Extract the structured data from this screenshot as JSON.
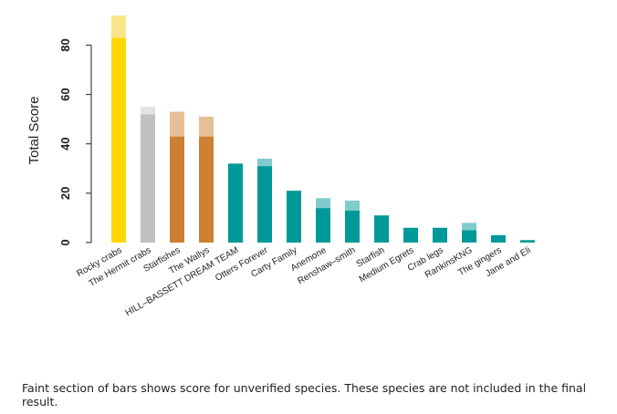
{
  "chart_data": {
    "type": "bar",
    "stacked": true,
    "ylabel": "Total Score",
    "xlabel": "",
    "ylim": [
      0,
      92
    ],
    "yticks": [
      0,
      20,
      40,
      60,
      80
    ],
    "grid": false,
    "categories": [
      "Rocky crabs",
      "The Hermit crabs",
      "Starfishes",
      "The Wallys",
      "HILL–BASSETT DREAM TEAM",
      "Otters Forever",
      "Carty Family",
      "Anemone",
      "Renshaw–smith",
      "Starfish",
      "Medium Egrets",
      "Crab legs",
      "RankinsKNG",
      "The gingers",
      "Jane and Eli"
    ],
    "series": [
      {
        "key": "verified",
        "values": [
          83,
          52,
          43,
          43,
          32,
          31,
          21,
          14,
          13,
          11,
          6,
          6,
          5,
          3,
          1
        ]
      },
      {
        "key": "unverified",
        "values": [
          9,
          3,
          10,
          8,
          0,
          3,
          0,
          4,
          4,
          0,
          0,
          0,
          3,
          0,
          0
        ]
      }
    ],
    "bar_colors": [
      "#FFD700",
      "#C0C0C0",
      "#CD7F32",
      "#CD7F32",
      "#009999",
      "#009999",
      "#009999",
      "#009999",
      "#009999",
      "#009999",
      "#009999",
      "#009999",
      "#009999",
      "#009999",
      "#009999"
    ],
    "faint_colors": [
      "#FDE58A",
      "#E3E3E3",
      "#E6BF99",
      "#E6BF99",
      "#80CCCC",
      "#80CCCC",
      "#80CCCC",
      "#80CCCC",
      "#80CCCC",
      "#80CCCC",
      "#80CCCC",
      "#80CCCC",
      "#80CCCC",
      "#80CCCC",
      "#80CCCC"
    ]
  },
  "caption": "Faint section of bars shows score for unverified species. These species are not included in the final result."
}
